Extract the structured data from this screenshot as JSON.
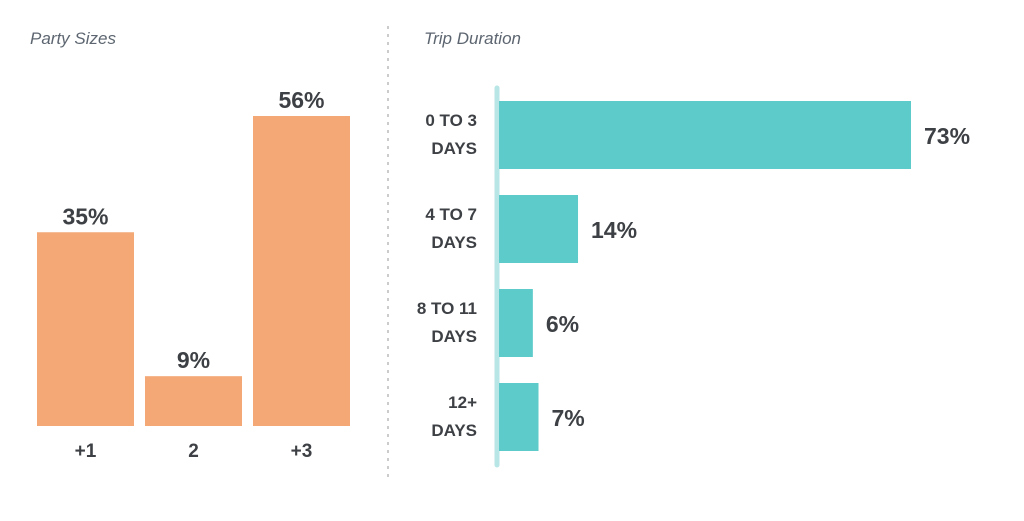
{
  "chart_data": [
    {
      "type": "bar",
      "title": "Party Sizes",
      "categories": [
        "+1",
        "2",
        "+3"
      ],
      "values": [
        35,
        9,
        56
      ],
      "value_labels": [
        "35%",
        "9%",
        "56%"
      ],
      "ylim": [
        0,
        56
      ],
      "color": "#f4a876",
      "grid": false
    },
    {
      "type": "bar",
      "orientation": "horizontal",
      "title": "Trip Duration",
      "categories": [
        [
          "0 TO 3",
          "DAYS"
        ],
        [
          "4 TO 7",
          "DAYS"
        ],
        [
          "8 TO 11",
          "DAYS"
        ],
        [
          "12+",
          "DAYS"
        ]
      ],
      "values": [
        73,
        14,
        6,
        7
      ],
      "value_labels": [
        "73%",
        "14%",
        "6%",
        "7%"
      ],
      "xlim": [
        0,
        73
      ],
      "color": "#5ecbcb",
      "axis_color": "#b8e6e6",
      "grid": false
    }
  ],
  "divider_color": "#cccccc"
}
